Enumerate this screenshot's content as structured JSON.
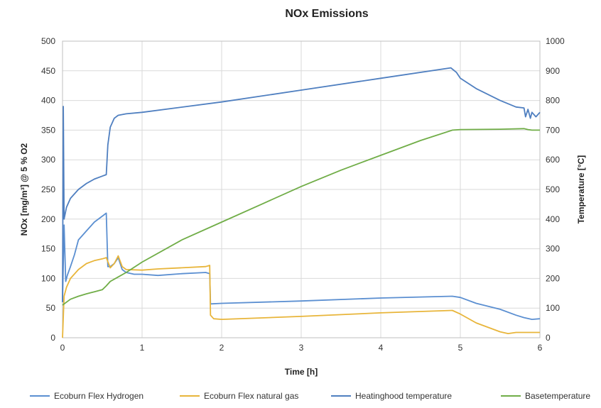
{
  "chart_data": {
    "type": "line",
    "title": "NOx Emissions",
    "xlabel": "Time [h]",
    "ylabel": "NOx [mg/m³] @ 5 % O2",
    "y2label": "Temperature [°C]",
    "xlim": [
      0,
      6
    ],
    "ylim": [
      0,
      500
    ],
    "y2lim": [
      0,
      1000
    ],
    "xticks": [
      "0",
      "1",
      "2",
      "3",
      "4",
      "5",
      "6"
    ],
    "yticks": [
      "0",
      "50",
      "100",
      "150",
      "200",
      "250",
      "300",
      "350",
      "400",
      "450",
      "500"
    ],
    "y2ticks": [
      "0",
      "100",
      "200",
      "300",
      "400",
      "500",
      "600",
      "700",
      "800",
      "900",
      "1000"
    ],
    "grid": true,
    "legend_position": "bottom",
    "series": [
      {
        "name": "Ecoburn Flex Hydrogen",
        "axis": "left",
        "color": "#5b8fd1",
        "x": [
          0,
          0.02,
          0.04,
          0.06,
          0.1,
          0.15,
          0.2,
          0.3,
          0.4,
          0.5,
          0.55,
          0.57,
          0.6,
          0.65,
          0.7,
          0.75,
          0.8,
          0.9,
          1.0,
          1.2,
          1.5,
          1.8,
          1.85,
          1.86,
          2.0,
          3.0,
          4.0,
          4.9,
          5.0,
          5.2,
          5.5,
          5.7,
          5.8,
          5.9,
          6.0
        ],
        "y": [
          60,
          190,
          95,
          105,
          120,
          140,
          165,
          180,
          195,
          205,
          210,
          120,
          120,
          125,
          135,
          115,
          110,
          107,
          107,
          105,
          108,
          110,
          108,
          57,
          58,
          62,
          67,
          70,
          68,
          58,
          48,
          38,
          34,
          31,
          32
        ]
      },
      {
        "name": "Ecoburn Flex natural gas",
        "axis": "left",
        "color": "#e8b53a",
        "x": [
          0,
          0.02,
          0.05,
          0.1,
          0.2,
          0.3,
          0.4,
          0.5,
          0.55,
          0.6,
          0.65,
          0.7,
          0.75,
          0.8,
          1.0,
          1.2,
          1.5,
          1.8,
          1.85,
          1.86,
          1.9,
          2.0,
          3.0,
          4.0,
          4.9,
          5.0,
          5.2,
          5.5,
          5.6,
          5.7,
          5.8,
          6.0
        ],
        "y": [
          0,
          70,
          85,
          100,
          115,
          125,
          130,
          133,
          135,
          118,
          125,
          138,
          120,
          115,
          114,
          116,
          118,
          120,
          122,
          38,
          32,
          31,
          36,
          42,
          46,
          40,
          25,
          10,
          7,
          9,
          9,
          9
        ]
      },
      {
        "name": "Heatinghood temperature",
        "axis": "right",
        "color": "#4f7fc0",
        "x": [
          0,
          0.01,
          0.02,
          0.05,
          0.1,
          0.2,
          0.3,
          0.4,
          0.5,
          0.55,
          0.57,
          0.6,
          0.65,
          0.7,
          0.8,
          1.0,
          2.0,
          3.0,
          4.0,
          4.88,
          4.95,
          5.0,
          5.2,
          5.5,
          5.7,
          5.8,
          5.82,
          5.85,
          5.88,
          5.9,
          5.95,
          6.0
        ],
        "y": [
          120,
          780,
          400,
          440,
          470,
          500,
          520,
          535,
          545,
          550,
          650,
          710,
          740,
          750,
          755,
          760,
          795,
          835,
          875,
          910,
          895,
          875,
          840,
          800,
          778,
          775,
          745,
          770,
          740,
          760,
          745,
          760
        ]
      },
      {
        "name": "Basetemperature",
        "axis": "right",
        "color": "#70ad47",
        "x": [
          0,
          0.05,
          0.1,
          0.2,
          0.3,
          0.4,
          0.5,
          0.55,
          0.6,
          0.7,
          0.8,
          1.0,
          1.5,
          2.0,
          2.5,
          3.0,
          3.5,
          4.0,
          4.5,
          4.9,
          5.0,
          5.5,
          5.8,
          5.85,
          5.9,
          6.0
        ],
        "y": [
          110,
          120,
          130,
          140,
          148,
          155,
          162,
          175,
          190,
          205,
          220,
          255,
          330,
          390,
          450,
          510,
          565,
          615,
          665,
          700,
          702,
          703,
          705,
          702,
          700,
          700
        ]
      }
    ]
  }
}
